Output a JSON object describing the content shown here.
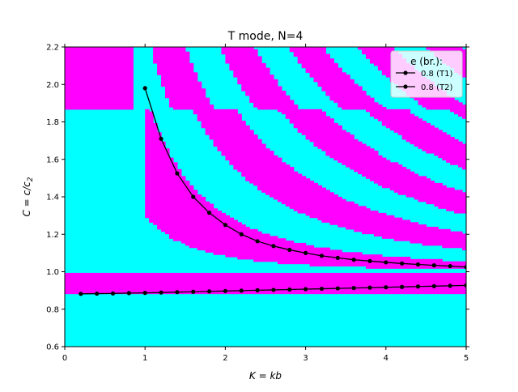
{
  "chart_data": {
    "type": "line",
    "title": "T mode, N=4",
    "xlabel": "K = kb",
    "ylabel": "C = c/c2",
    "xlim": [
      0,
      5
    ],
    "ylim": [
      0.6,
      2.2
    ],
    "xticks": [
      0,
      1,
      2,
      3,
      4,
      5
    ],
    "yticks": [
      0.6,
      0.8,
      1.0,
      1.2,
      1.4,
      1.6,
      1.8,
      2.0,
      2.2
    ],
    "xtick_labels": [
      "0",
      "1",
      "2",
      "3",
      "4",
      "5"
    ],
    "ytick_labels": [
      "0.6",
      "0.8",
      "1.0",
      "1.2",
      "1.4",
      "1.6",
      "1.8",
      "2.0",
      "2.2"
    ],
    "background_map": {
      "colors": {
        "a": "#00ffff",
        "b": "#ff00ff"
      },
      "description_bands": "alternating regions of cyan and magenta"
    },
    "legend": {
      "title": "e (br.):",
      "placement": "top-right",
      "entries": [
        "0.8 (T1)",
        "0.8 (T2)"
      ]
    },
    "series": [
      {
        "name": "0.8 (T1)",
        "color": "#000000",
        "x": [
          1.0,
          1.2,
          1.4,
          1.6,
          1.8,
          2.0,
          2.2,
          2.4,
          2.6,
          2.8,
          3.0,
          3.2,
          3.4,
          3.6,
          3.8,
          4.0,
          4.2,
          4.4,
          4.6,
          4.8,
          5.0
        ],
        "y": [
          1.98,
          1.71,
          1.525,
          1.4,
          1.315,
          1.25,
          1.2,
          1.163,
          1.137,
          1.117,
          1.1,
          1.085,
          1.074,
          1.064,
          1.057,
          1.05,
          1.044,
          1.039,
          1.034,
          1.03,
          1.025
        ]
      },
      {
        "name": "0.8 (T2)",
        "color": "#000000",
        "x": [
          0.2,
          0.4,
          0.6,
          0.8,
          1.0,
          1.2,
          1.4,
          1.6,
          1.8,
          2.0,
          2.2,
          2.4,
          2.6,
          2.8,
          3.0,
          3.2,
          3.4,
          3.6,
          3.8,
          4.0,
          4.2,
          4.4,
          4.6,
          4.8,
          5.0
        ],
        "y": [
          0.882,
          0.883,
          0.884,
          0.886,
          0.887,
          0.889,
          0.891,
          0.893,
          0.895,
          0.897,
          0.899,
          0.901,
          0.903,
          0.905,
          0.907,
          0.909,
          0.911,
          0.913,
          0.915,
          0.917,
          0.919,
          0.921,
          0.923,
          0.925,
          0.927
        ]
      }
    ]
  }
}
